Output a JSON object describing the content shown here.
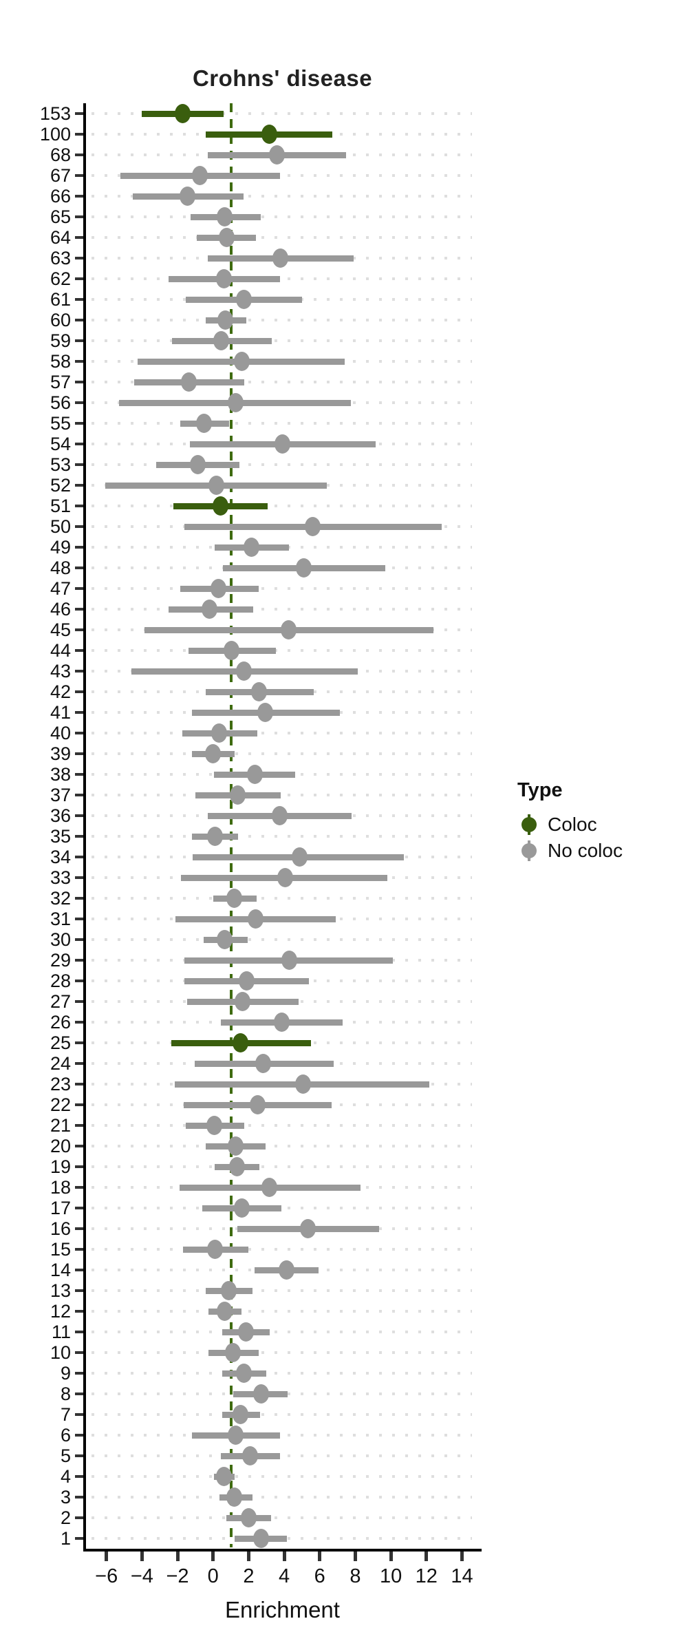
{
  "chart_data": {
    "type": "scatter",
    "subtype": "forest-pointrange",
    "title": "Crohns' disease",
    "xlabel": "Enrichment",
    "ylabel": "",
    "x_ticks": [
      -6,
      -4,
      -2,
      0,
      2,
      4,
      6,
      8,
      10,
      12,
      14
    ],
    "xlim": [
      -7.15,
      14.95
    ],
    "reference_line_x": 1,
    "grid": "dotted-horizontal-per-row",
    "legend": {
      "title": "Type",
      "position": "right",
      "items": [
        {
          "label": "Coloc",
          "color": "#3a5e0e"
        },
        {
          "label": "No coloc",
          "color": "#999999"
        }
      ]
    },
    "colors": {
      "coloc": "#3a5e0e",
      "no_coloc": "#999999",
      "reference_line": "#3f6b10",
      "axis": "#000000",
      "grid_dots": "#dedede",
      "title_text": "#222222"
    },
    "rows": [
      {
        "label": "153",
        "type": "Coloc",
        "ci_low": -4.0,
        "estimate": -1.7,
        "ci_high": 0.6
      },
      {
        "label": "100",
        "type": "Coloc",
        "ci_low": -0.4,
        "estimate": 3.15,
        "ci_high": 6.7
      },
      {
        "label": "68",
        "type": "No coloc",
        "ci_low": -0.3,
        "estimate": 3.6,
        "ci_high": 7.5
      },
      {
        "label": "67",
        "type": "No coloc",
        "ci_low": -5.2,
        "estimate": -0.75,
        "ci_high": 3.75
      },
      {
        "label": "66",
        "type": "No coloc",
        "ci_low": -4.5,
        "estimate": -1.45,
        "ci_high": 1.7
      },
      {
        "label": "65",
        "type": "No coloc",
        "ci_low": -1.25,
        "estimate": 0.65,
        "ci_high": 2.7
      },
      {
        "label": "64",
        "type": "No coloc",
        "ci_low": -0.9,
        "estimate": 0.75,
        "ci_high": 2.4
      },
      {
        "label": "63",
        "type": "No coloc",
        "ci_low": -0.3,
        "estimate": 3.8,
        "ci_high": 7.9
      },
      {
        "label": "62",
        "type": "No coloc",
        "ci_low": -2.5,
        "estimate": 0.6,
        "ci_high": 3.75
      },
      {
        "label": "61",
        "type": "No coloc",
        "ci_low": -1.55,
        "estimate": 1.75,
        "ci_high": 5.0
      },
      {
        "label": "60",
        "type": "No coloc",
        "ci_low": -0.4,
        "estimate": 0.7,
        "ci_high": 1.85
      },
      {
        "label": "59",
        "type": "No coloc",
        "ci_low": -2.3,
        "estimate": 0.45,
        "ci_high": 3.3
      },
      {
        "label": "58",
        "type": "No coloc",
        "ci_low": -4.25,
        "estimate": 1.6,
        "ci_high": 7.4
      },
      {
        "label": "57",
        "type": "No coloc",
        "ci_low": -4.45,
        "estimate": -1.35,
        "ci_high": 1.75
      },
      {
        "label": "56",
        "type": "No coloc",
        "ci_low": -5.3,
        "estimate": 1.25,
        "ci_high": 7.75
      },
      {
        "label": "55",
        "type": "No coloc",
        "ci_low": -1.85,
        "estimate": -0.5,
        "ci_high": 0.9
      },
      {
        "label": "54",
        "type": "No coloc",
        "ci_low": -1.3,
        "estimate": 3.9,
        "ci_high": 9.15
      },
      {
        "label": "53",
        "type": "No coloc",
        "ci_low": -3.2,
        "estimate": -0.85,
        "ci_high": 1.5
      },
      {
        "label": "52",
        "type": "No coloc",
        "ci_low": -6.05,
        "estimate": 0.2,
        "ci_high": 6.4
      },
      {
        "label": "51",
        "type": "Coloc",
        "ci_low": -2.25,
        "estimate": 0.4,
        "ci_high": 3.05
      },
      {
        "label": "50",
        "type": "No coloc",
        "ci_low": -1.6,
        "estimate": 5.6,
        "ci_high": 12.85
      },
      {
        "label": "49",
        "type": "No coloc",
        "ci_low": 0.1,
        "estimate": 2.15,
        "ci_high": 4.25
      },
      {
        "label": "48",
        "type": "No coloc",
        "ci_low": 0.55,
        "estimate": 5.1,
        "ci_high": 9.7
      },
      {
        "label": "47",
        "type": "No coloc",
        "ci_low": -1.85,
        "estimate": 0.3,
        "ci_high": 2.55
      },
      {
        "label": "46",
        "type": "No coloc",
        "ci_low": -2.5,
        "estimate": -0.2,
        "ci_high": 2.25
      },
      {
        "label": "45",
        "type": "No coloc",
        "ci_low": -3.85,
        "estimate": 4.25,
        "ci_high": 12.4
      },
      {
        "label": "44",
        "type": "No coloc",
        "ci_low": -1.4,
        "estimate": 1.05,
        "ci_high": 3.55
      },
      {
        "label": "43",
        "type": "No coloc",
        "ci_low": -4.6,
        "estimate": 1.75,
        "ci_high": 8.15
      },
      {
        "label": "42",
        "type": "No coloc",
        "ci_low": -0.4,
        "estimate": 2.6,
        "ci_high": 5.65
      },
      {
        "label": "41",
        "type": "No coloc",
        "ci_low": -1.2,
        "estimate": 2.95,
        "ci_high": 7.15
      },
      {
        "label": "40",
        "type": "No coloc",
        "ci_low": -1.75,
        "estimate": 0.35,
        "ci_high": 2.5
      },
      {
        "label": "39",
        "type": "No coloc",
        "ci_low": -1.2,
        "estimate": 0.0,
        "ci_high": 1.2
      },
      {
        "label": "38",
        "type": "No coloc",
        "ci_low": 0.05,
        "estimate": 2.35,
        "ci_high": 4.6
      },
      {
        "label": "37",
        "type": "No coloc",
        "ci_low": -1.0,
        "estimate": 1.4,
        "ci_high": 3.8
      },
      {
        "label": "36",
        "type": "No coloc",
        "ci_low": -0.3,
        "estimate": 3.75,
        "ci_high": 7.8
      },
      {
        "label": "35",
        "type": "No coloc",
        "ci_low": -1.2,
        "estimate": 0.1,
        "ci_high": 1.4
      },
      {
        "label": "34",
        "type": "No coloc",
        "ci_low": -1.15,
        "estimate": 4.85,
        "ci_high": 10.75
      },
      {
        "label": "33",
        "type": "No coloc",
        "ci_low": -1.8,
        "estimate": 4.05,
        "ci_high": 9.8
      },
      {
        "label": "32",
        "type": "No coloc",
        "ci_low": 0.0,
        "estimate": 1.2,
        "ci_high": 2.45
      },
      {
        "label": "31",
        "type": "No coloc",
        "ci_low": -2.1,
        "estimate": 2.4,
        "ci_high": 6.9
      },
      {
        "label": "30",
        "type": "No coloc",
        "ci_low": -0.55,
        "estimate": 0.65,
        "ci_high": 1.95
      },
      {
        "label": "29",
        "type": "No coloc",
        "ci_low": -1.6,
        "estimate": 4.3,
        "ci_high": 10.1
      },
      {
        "label": "28",
        "type": "No coloc",
        "ci_low": -1.6,
        "estimate": 1.9,
        "ci_high": 5.4
      },
      {
        "label": "27",
        "type": "No coloc",
        "ci_low": -1.45,
        "estimate": 1.65,
        "ci_high": 4.8
      },
      {
        "label": "26",
        "type": "No coloc",
        "ci_low": 0.45,
        "estimate": 3.85,
        "ci_high": 7.3
      },
      {
        "label": "25",
        "type": "Coloc",
        "ci_low": -2.35,
        "estimate": 1.55,
        "ci_high": 5.5
      },
      {
        "label": "24",
        "type": "No coloc",
        "ci_low": -1.05,
        "estimate": 2.8,
        "ci_high": 6.8
      },
      {
        "label": "23",
        "type": "No coloc",
        "ci_low": -2.15,
        "estimate": 5.05,
        "ci_high": 12.15
      },
      {
        "label": "22",
        "type": "No coloc",
        "ci_low": -1.65,
        "estimate": 2.5,
        "ci_high": 6.65
      },
      {
        "label": "21",
        "type": "No coloc",
        "ci_low": -1.55,
        "estimate": 0.05,
        "ci_high": 1.75
      },
      {
        "label": "20",
        "type": "No coloc",
        "ci_low": -0.4,
        "estimate": 1.25,
        "ci_high": 2.95
      },
      {
        "label": "19",
        "type": "No coloc",
        "ci_low": 0.1,
        "estimate": 1.35,
        "ci_high": 2.6
      },
      {
        "label": "18",
        "type": "No coloc",
        "ci_low": -1.9,
        "estimate": 3.15,
        "ci_high": 8.3
      },
      {
        "label": "17",
        "type": "No coloc",
        "ci_low": -0.6,
        "estimate": 1.6,
        "ci_high": 3.85
      },
      {
        "label": "16",
        "type": "No coloc",
        "ci_low": 1.35,
        "estimate": 5.35,
        "ci_high": 9.35
      },
      {
        "label": "15",
        "type": "No coloc",
        "ci_low": -1.7,
        "estimate": 0.1,
        "ci_high": 2.0
      },
      {
        "label": "14",
        "type": "No coloc",
        "ci_low": 2.35,
        "estimate": 4.15,
        "ci_high": 5.95
      },
      {
        "label": "13",
        "type": "No coloc",
        "ci_low": -0.4,
        "estimate": 0.9,
        "ci_high": 2.2
      },
      {
        "label": "12",
        "type": "No coloc",
        "ci_low": -0.25,
        "estimate": 0.65,
        "ci_high": 1.6
      },
      {
        "label": "11",
        "type": "No coloc",
        "ci_low": 0.5,
        "estimate": 1.85,
        "ci_high": 3.2
      },
      {
        "label": "10",
        "type": "No coloc",
        "ci_low": -0.25,
        "estimate": 1.1,
        "ci_high": 2.55
      },
      {
        "label": "9",
        "type": "No coloc",
        "ci_low": 0.5,
        "estimate": 1.75,
        "ci_high": 3.0
      },
      {
        "label": "8",
        "type": "No coloc",
        "ci_low": 1.15,
        "estimate": 2.7,
        "ci_high": 4.2
      },
      {
        "label": "7",
        "type": "No coloc",
        "ci_low": 0.5,
        "estimate": 1.55,
        "ci_high": 2.65
      },
      {
        "label": "6",
        "type": "No coloc",
        "ci_low": -1.2,
        "estimate": 1.25,
        "ci_high": 3.75
      },
      {
        "label": "5",
        "type": "No coloc",
        "ci_low": 0.45,
        "estimate": 2.1,
        "ci_high": 3.75
      },
      {
        "label": "4",
        "type": "No coloc",
        "ci_low": 0.05,
        "estimate": 0.6,
        "ci_high": 1.2
      },
      {
        "label": "3",
        "type": "No coloc",
        "ci_low": 0.35,
        "estimate": 1.2,
        "ci_high": 2.2
      },
      {
        "label": "2",
        "type": "No coloc",
        "ci_low": 0.75,
        "estimate": 2.0,
        "ci_high": 3.25
      },
      {
        "label": "1",
        "type": "No coloc",
        "ci_low": 1.2,
        "estimate": 2.7,
        "ci_high": 4.15
      }
    ]
  }
}
